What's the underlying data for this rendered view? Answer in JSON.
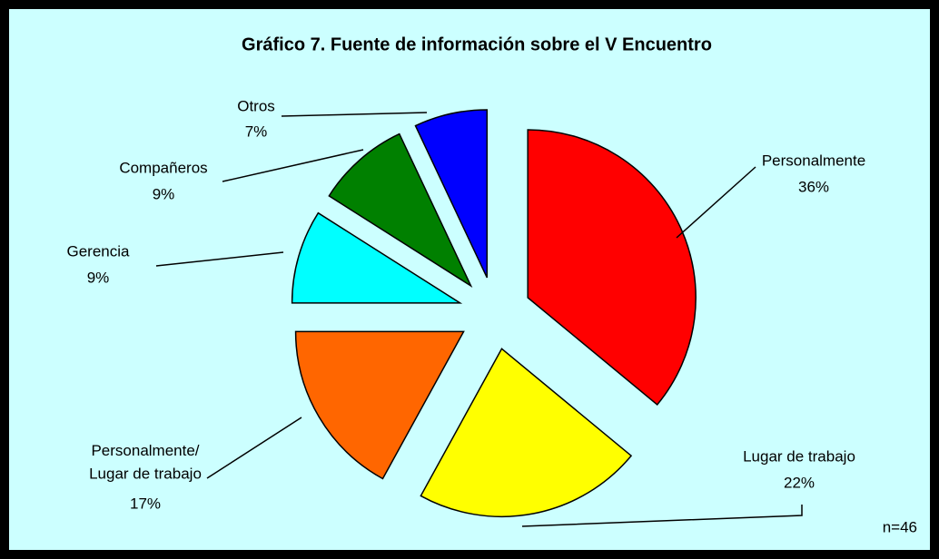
{
  "chart_data": {
    "type": "pie",
    "title": "Gráfico 7. Fuente de información sobre el V Encuentro",
    "categories": [
      "Personalmente",
      "Lugar de trabajo",
      "Personalmente/\nLugar de trabajo",
      "Gerencia",
      "Compañeros",
      "Otros"
    ],
    "values": [
      36,
      22,
      17,
      9,
      9,
      7
    ],
    "value_labels": [
      "36%",
      "22%",
      "17%",
      "9%",
      "9%",
      "7%"
    ],
    "colors": [
      "#ff0000",
      "#ffff00",
      "#ff6600",
      "#00ffff",
      "#008000",
      "#0000ff"
    ],
    "annotation": "n=46"
  }
}
